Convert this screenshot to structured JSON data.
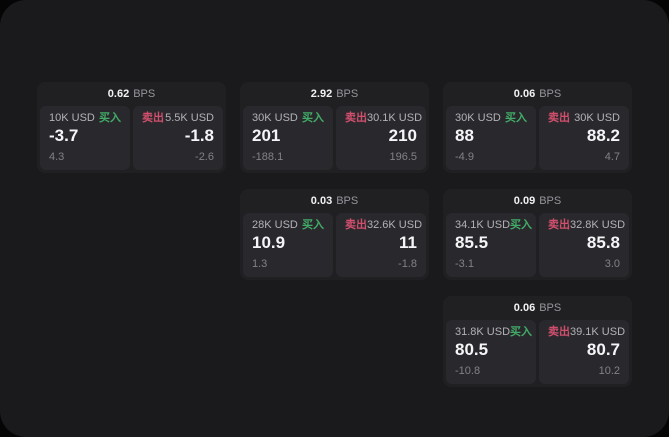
{
  "labels": {
    "bps": "BPS",
    "buy": "买入",
    "sell": "卖出"
  },
  "colors": {
    "buy": "#42ac67",
    "sell": "#d14f6d",
    "card": "#202023",
    "panel": "#29292d",
    "frame": "#1a1a1c"
  },
  "cards": [
    {
      "bps": "0.62",
      "buy": {
        "amount": "10K USD",
        "value": "-3.7",
        "delta": "4.3"
      },
      "sell": {
        "amount": "5.5K USD",
        "value": "-1.8",
        "delta": "-2.6"
      }
    },
    {
      "bps": "2.92",
      "buy": {
        "amount": "30K USD",
        "value": "201",
        "delta": "-188.1"
      },
      "sell": {
        "amount": "30.1K USD",
        "value": "210",
        "delta": "196.5"
      }
    },
    {
      "bps": "0.06",
      "buy": {
        "amount": "30K USD",
        "value": "88",
        "delta": "-4.9"
      },
      "sell": {
        "amount": "30K USD",
        "value": "88.2",
        "delta": "4.7"
      }
    },
    {
      "bps": "0.03",
      "buy": {
        "amount": "28K USD",
        "value": "10.9",
        "delta": "1.3"
      },
      "sell": {
        "amount": "32.6K USD",
        "value": "11",
        "delta": "-1.8"
      }
    },
    {
      "bps": "0.09",
      "buy": {
        "amount": "34.1K USD",
        "value": "85.5",
        "delta": "-3.1"
      },
      "sell": {
        "amount": "32.8K USD",
        "value": "85.8",
        "delta": "3.0"
      }
    },
    {
      "bps": "0.06",
      "buy": {
        "amount": "31.8K USD",
        "value": "80.5",
        "delta": "-10.8"
      },
      "sell": {
        "amount": "39.1K USD",
        "value": "80.7",
        "delta": "10.2"
      }
    }
  ]
}
